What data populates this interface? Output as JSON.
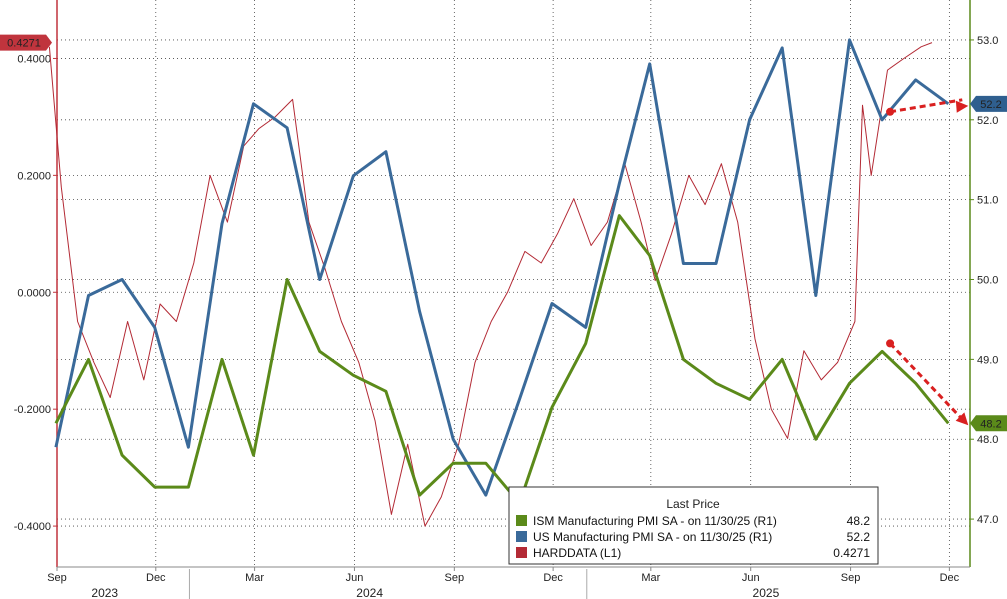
{
  "chart_data": {
    "type": "line",
    "x_start": "2023-09",
    "x_end": "2025-12",
    "x_tick_labels": [
      {
        "label": "Sep",
        "date": "2023-09-01"
      },
      {
        "label": "Dec",
        "date": "2023-12-01"
      },
      {
        "label": "Mar",
        "date": "2024-03-01"
      },
      {
        "label": "Jun",
        "date": "2024-06-01"
      },
      {
        "label": "Sep",
        "date": "2024-09-01"
      },
      {
        "label": "Dec",
        "date": "2024-12-01"
      },
      {
        "label": "Mar",
        "date": "2025-03-01"
      },
      {
        "label": "Jun",
        "date": "2025-06-01"
      },
      {
        "label": "Sep",
        "date": "2025-09-01"
      },
      {
        "label": "Dec",
        "date": "2025-12-01"
      }
    ],
    "year_labels": [
      {
        "label": "2023",
        "date": "2023-10-15"
      },
      {
        "label": "2024",
        "date": "2024-06-15"
      },
      {
        "label": "2025",
        "date": "2025-06-15"
      }
    ],
    "left_axis": {
      "ticks": [
        0.4,
        0.2,
        0.0,
        -0.2,
        -0.4
      ],
      "tick_labels": [
        "0.4000",
        "0.2000",
        "0.0000",
        "-0.2000",
        "-0.4000"
      ],
      "range": [
        -0.47,
        0.5
      ]
    },
    "right_axis": {
      "ticks": [
        53.0,
        52.0,
        51.0,
        50.0,
        49.0,
        48.0,
        47.0
      ],
      "tick_labels": [
        "53.0",
        "52.0",
        "51.0",
        "50.0",
        "49.0",
        "48.0",
        "47.0"
      ],
      "range": [
        46.4,
        53.5
      ]
    },
    "grid": true,
    "legend": {
      "title": "Last Price",
      "placement": "bottom-right",
      "entries": [
        {
          "name": "ISM Manufacturing PMI SA -  on 11/30/25  (R1)",
          "value": "48.2",
          "color": "#5b8a1a"
        },
        {
          "name": "US Manufacturing PMI SA -  on 11/30/25  (R1)",
          "value": "52.2",
          "color": "#3a6a9a"
        },
        {
          "name": "HARDDATA  (L1)",
          "value": "0.4271",
          "color": "#b32a35"
        }
      ]
    },
    "value_tags": [
      {
        "series": "HARDDATA",
        "text": "0.4271",
        "color": "#c0343d",
        "axis": "left"
      },
      {
        "series": "US Manufacturing PMI SA",
        "text": "52.2",
        "color": "#2f5f8f",
        "axis": "right"
      },
      {
        "series": "ISM Manufacturing PMI SA",
        "text": "48.2",
        "color": "#5b8a1a",
        "axis": "right"
      }
    ],
    "series": [
      {
        "name": "ISM Manufacturing PMI SA",
        "axis": "right",
        "color": "#5b8a1a",
        "points": [
          [
            "2023-08-31",
            48.2
          ],
          [
            "2023-09-30",
            49.0
          ],
          [
            "2023-10-31",
            47.8
          ],
          [
            "2023-11-30",
            47.4
          ],
          [
            "2023-12-31",
            47.4
          ],
          [
            "2024-01-31",
            49.0
          ],
          [
            "2024-02-29",
            47.8
          ],
          [
            "2024-03-31",
            50.0
          ],
          [
            "2024-04-30",
            49.1
          ],
          [
            "2024-05-31",
            48.8
          ],
          [
            "2024-06-30",
            48.6
          ],
          [
            "2024-07-31",
            47.3
          ],
          [
            "2024-08-31",
            47.7
          ],
          [
            "2024-09-30",
            47.7
          ],
          [
            "2024-10-31",
            47.2
          ],
          [
            "2024-11-30",
            48.4
          ],
          [
            "2024-12-31",
            49.2
          ],
          [
            "2025-01-31",
            50.8
          ],
          [
            "2025-02-28",
            50.3
          ],
          [
            "2025-03-31",
            49.0
          ],
          [
            "2025-04-30",
            48.7
          ],
          [
            "2025-05-31",
            48.5
          ],
          [
            "2025-06-30",
            49.0
          ],
          [
            "2025-07-31",
            48.0
          ],
          [
            "2025-08-31",
            48.7
          ],
          [
            "2025-09-30",
            49.1
          ],
          [
            "2025-10-31",
            48.7
          ],
          [
            "2025-11-30",
            48.2
          ]
        ]
      },
      {
        "name": "US Manufacturing PMI SA",
        "axis": "right",
        "color": "#3a6a9a",
        "points": [
          [
            "2023-08-31",
            47.9
          ],
          [
            "2023-09-30",
            49.8
          ],
          [
            "2023-10-31",
            50.0
          ],
          [
            "2023-11-30",
            49.4
          ],
          [
            "2023-12-31",
            47.9
          ],
          [
            "2024-01-31",
            50.7
          ],
          [
            "2024-02-29",
            52.2
          ],
          [
            "2024-03-31",
            51.9
          ],
          [
            "2024-04-30",
            50.0
          ],
          [
            "2024-05-31",
            51.3
          ],
          [
            "2024-06-30",
            51.6
          ],
          [
            "2024-07-31",
            49.6
          ],
          [
            "2024-08-31",
            48.0
          ],
          [
            "2024-09-30",
            47.3
          ],
          [
            "2024-10-31",
            48.5
          ],
          [
            "2024-11-30",
            49.7
          ],
          [
            "2024-12-31",
            49.4
          ],
          [
            "2025-01-31",
            51.2
          ],
          [
            "2025-02-28",
            52.7
          ],
          [
            "2025-03-31",
            50.2
          ],
          [
            "2025-04-30",
            50.2
          ],
          [
            "2025-05-31",
            52.0
          ],
          [
            "2025-06-30",
            52.9
          ],
          [
            "2025-07-31",
            49.8
          ],
          [
            "2025-08-31",
            53.0
          ],
          [
            "2025-09-30",
            52.0
          ],
          [
            "2025-10-31",
            52.5
          ],
          [
            "2025-11-30",
            52.2
          ]
        ]
      },
      {
        "name": "HARDDATA",
        "axis": "left",
        "color": "#b32a35",
        "points": [
          [
            "2023-08-25",
            0.42
          ],
          [
            "2023-09-05",
            0.18
          ],
          [
            "2023-09-20",
            -0.05
          ],
          [
            "2023-10-05",
            -0.12
          ],
          [
            "2023-10-20",
            -0.18
          ],
          [
            "2023-11-05",
            -0.05
          ],
          [
            "2023-11-20",
            -0.15
          ],
          [
            "2023-12-05",
            -0.02
          ],
          [
            "2023-12-20",
            -0.05
          ],
          [
            "2024-01-05",
            0.05
          ],
          [
            "2024-01-20",
            0.2
          ],
          [
            "2024-02-05",
            0.12
          ],
          [
            "2024-02-20",
            0.25
          ],
          [
            "2024-03-05",
            0.28
          ],
          [
            "2024-03-20",
            0.3
          ],
          [
            "2024-04-05",
            0.33
          ],
          [
            "2024-04-20",
            0.12
          ],
          [
            "2024-05-05",
            0.04
          ],
          [
            "2024-05-20",
            -0.05
          ],
          [
            "2024-06-05",
            -0.12
          ],
          [
            "2024-06-20",
            -0.22
          ],
          [
            "2024-07-05",
            -0.38
          ],
          [
            "2024-07-20",
            -0.26
          ],
          [
            "2024-08-05",
            -0.4
          ],
          [
            "2024-08-20",
            -0.35
          ],
          [
            "2024-09-05",
            -0.26
          ],
          [
            "2024-09-20",
            -0.12
          ],
          [
            "2024-10-05",
            -0.05
          ],
          [
            "2024-10-20",
            0.0
          ],
          [
            "2024-11-05",
            0.07
          ],
          [
            "2024-11-20",
            0.05
          ],
          [
            "2024-12-05",
            0.1
          ],
          [
            "2024-12-20",
            0.16
          ],
          [
            "2025-01-05",
            0.08
          ],
          [
            "2025-01-20",
            0.12
          ],
          [
            "2025-02-05",
            0.22
          ],
          [
            "2025-02-20",
            0.12
          ],
          [
            "2025-03-05",
            0.02
          ],
          [
            "2025-03-20",
            0.1
          ],
          [
            "2025-04-05",
            0.2
          ],
          [
            "2025-04-20",
            0.15
          ],
          [
            "2025-05-05",
            0.22
          ],
          [
            "2025-05-20",
            0.12
          ],
          [
            "2025-06-05",
            -0.08
          ],
          [
            "2025-06-20",
            -0.2
          ],
          [
            "2025-07-05",
            -0.25
          ],
          [
            "2025-07-20",
            -0.1
          ],
          [
            "2025-08-05",
            -0.15
          ],
          [
            "2025-08-20",
            -0.12
          ],
          [
            "2025-09-05",
            -0.05
          ],
          [
            "2025-09-12",
            0.32
          ],
          [
            "2025-09-20",
            0.2
          ],
          [
            "2025-10-05",
            0.38
          ],
          [
            "2025-10-20",
            0.4
          ],
          [
            "2025-11-05",
            0.42
          ],
          [
            "2025-11-15",
            0.4271
          ]
        ]
      }
    ],
    "annotations": [
      {
        "type": "arrow",
        "near_series": "US Manufacturing PMI SA",
        "direction": "down",
        "color": "#d92020"
      },
      {
        "type": "arrow",
        "near_series": "ISM Manufacturing PMI SA",
        "direction": "down",
        "color": "#d92020"
      }
    ]
  }
}
